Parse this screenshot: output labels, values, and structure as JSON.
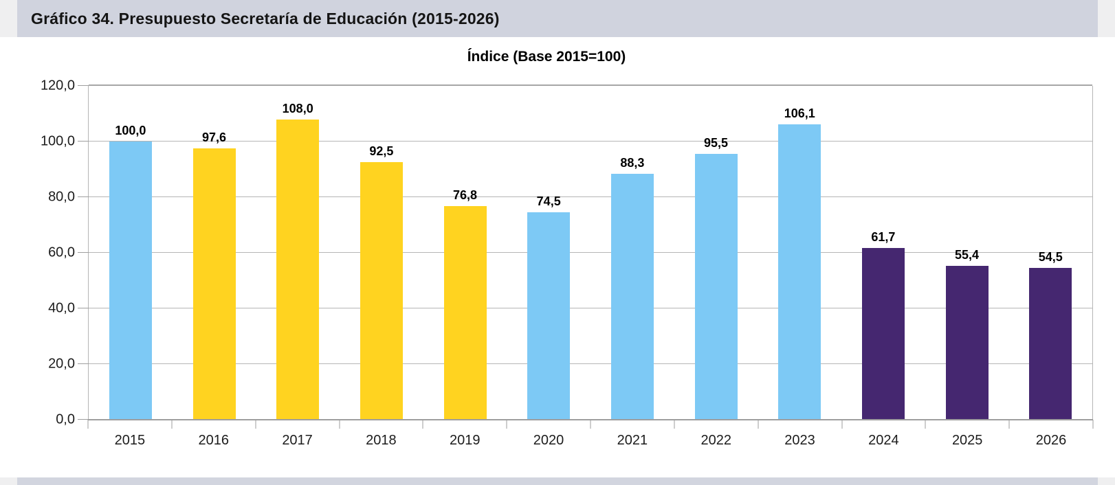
{
  "header": {
    "title": "Gráfico 34. Presupuesto Secretaría de Educación (2015-2026)"
  },
  "chart": {
    "subtitle": "Índice (Base 2015=100)"
  },
  "chart_data": {
    "type": "bar",
    "title": "Índice (Base 2015=100)",
    "categories": [
      "2015",
      "2016",
      "2017",
      "2018",
      "2019",
      "2020",
      "2021",
      "2022",
      "2023",
      "2024",
      "2025",
      "2026"
    ],
    "values": [
      100.0,
      97.6,
      108.0,
      92.5,
      76.8,
      74.5,
      88.3,
      95.5,
      106.1,
      61.7,
      55.4,
      54.5
    ],
    "value_labels": [
      "100,0",
      "97,6",
      "108,0",
      "92,5",
      "76,8",
      "74,5",
      "88,3",
      "95,5",
      "106,1",
      "61,7",
      "55,4",
      "54,5"
    ],
    "bar_color_keys": [
      "blue",
      "yellow",
      "yellow",
      "yellow",
      "yellow",
      "blue",
      "blue",
      "blue",
      "blue",
      "purple",
      "purple",
      "purple"
    ],
    "palette": {
      "blue": "#7dc9f5",
      "yellow": "#ffd320",
      "purple": "#452770"
    },
    "xlabel": "",
    "ylabel": "",
    "ylim": [
      0,
      120
    ],
    "y_tick_step": 20,
    "y_tick_labels": [
      "0,0",
      "20,0",
      "40,0",
      "60,0",
      "80,0",
      "100,0",
      "120,0"
    ],
    "grid": true,
    "legend": "none"
  },
  "colors": {
    "header_band": "#d0d3de",
    "footer_band": "#d2d5df",
    "corner_strip": "#efeff0",
    "gridline": "#b5b5b5",
    "axis_line": "#9e9e9e"
  }
}
